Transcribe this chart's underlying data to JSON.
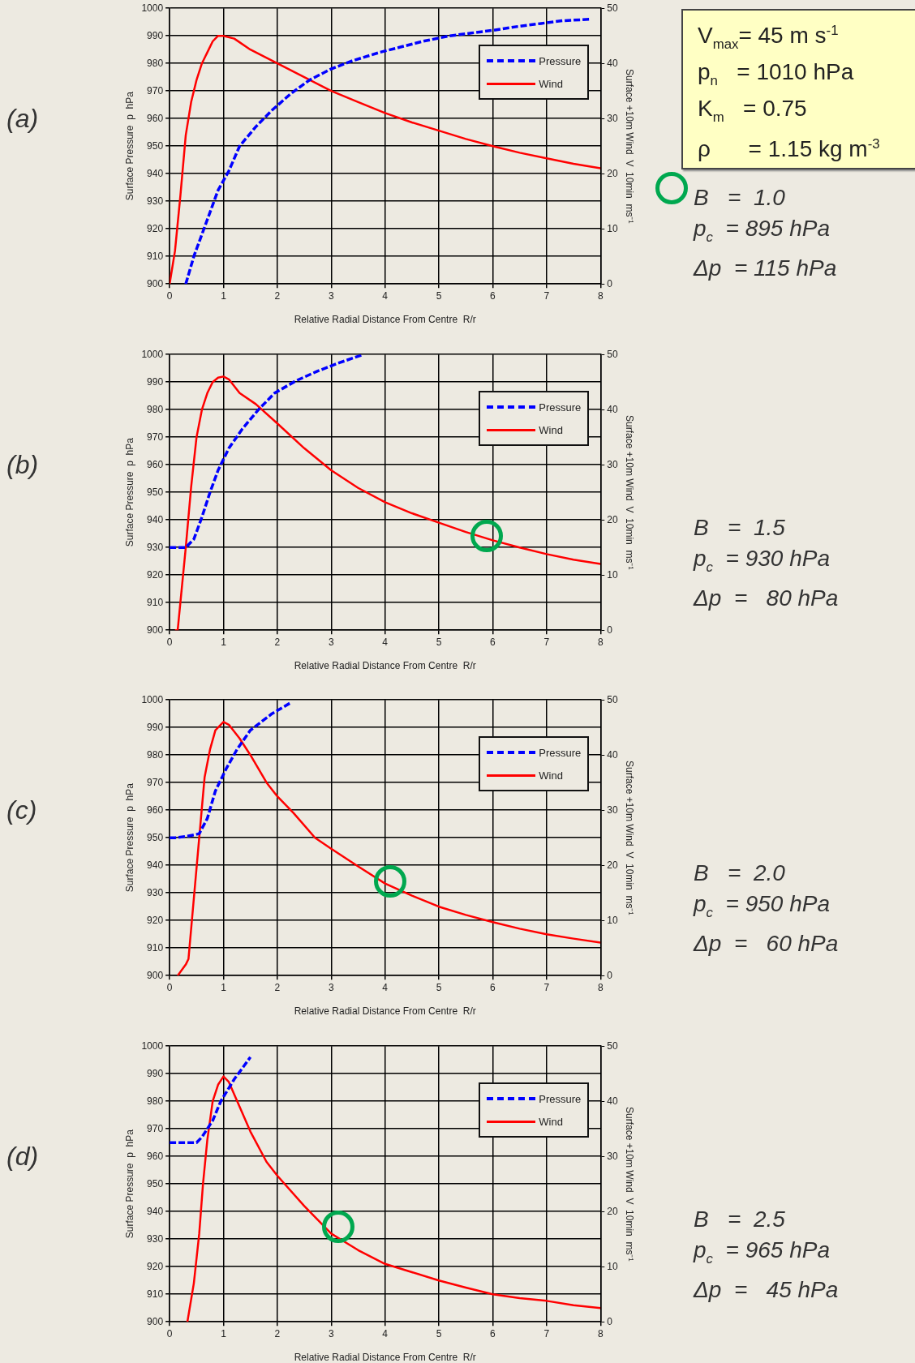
{
  "chart_data": [
    {
      "type": "line",
      "title": "(a)",
      "xlabel": "Relative Radial Distance From Centre  R/r",
      "ylabel": "Surface Pressure  p  hPa",
      "y2label": "Surface +10m Wind  V  10min  ms⁻¹",
      "xlim": [
        0,
        8
      ],
      "xticks": [
        0,
        1,
        2,
        3,
        4,
        5,
        6,
        7,
        8
      ],
      "ylim": [
        900,
        1000
      ],
      "yticks": [
        900,
        910,
        920,
        930,
        940,
        950,
        960,
        970,
        980,
        990,
        1000
      ],
      "y2lim": [
        0,
        50
      ],
      "y2ticks": [
        0,
        10,
        20,
        30,
        40,
        50
      ],
      "grid": true,
      "legend": "top right",
      "marker": "none",
      "series": [
        {
          "name": "Pressure",
          "color": "#0000ff",
          "line_style": "dashed",
          "x": [
            0.3,
            0.45,
            0.6,
            0.75,
            0.9,
            1.1,
            1.3,
            1.6,
            1.9,
            2.25,
            2.6,
            3,
            3.4,
            3.9,
            4.3,
            4.7,
            5.2,
            5.6,
            6,
            6.5,
            6.9,
            7.3,
            7.8
          ],
          "values": [
            900,
            910,
            918,
            926,
            934,
            941,
            950,
            957,
            963,
            969,
            974,
            978,
            981,
            984,
            986,
            988,
            990,
            991,
            992,
            993.5,
            994.5,
            995.5,
            996
          ]
        },
        {
          "name": "Wind",
          "color": "#ff0000",
          "line_style": "solid",
          "axis": "y2",
          "x": [
            0,
            0.1,
            0.2,
            0.3,
            0.4,
            0.5,
            0.6,
            0.7,
            0.8,
            0.9,
            1,
            1.2,
            1.5,
            2,
            2.5,
            3,
            3.5,
            4,
            4.5,
            5,
            5.5,
            6,
            6.5,
            7,
            7.5,
            8
          ],
          "values": [
            0,
            6,
            16,
            27,
            33,
            37,
            40,
            42,
            44,
            45,
            45,
            44.5,
            42.5,
            40,
            37.5,
            35,
            33,
            31,
            29.3,
            27.8,
            26.3,
            25,
            23.8,
            22.8,
            21.8,
            21
          ]
        }
      ],
      "annotations": [
        "B   =  1.0",
        "p$_{c}$  = 895 hPa",
        "Δp  = 115 hPa"
      ]
    },
    {
      "type": "other",
      "annotations": [
        "V$_{max}$= 45 m s$^{-1}$",
        "p$_{n}$   = 1010 hPa",
        "K$_{m}$   = 0.75",
        "ρ      = 1.15 kg m$^{-3}$"
      ]
    },
    {
      "type": "line",
      "title": "(b)",
      "xlabel": "Relative Radial Distance From Centre  R/r",
      "ylabel": "Surface Pressure  p  hPa",
      "y2label": "Surface +10m Wind  V  10min  ms⁻¹",
      "xlim": [
        0,
        8
      ],
      "xticks": [
        0,
        1,
        2,
        3,
        4,
        5,
        6,
        7,
        8
      ],
      "ylim": [
        900,
        1000
      ],
      "yticks": [
        900,
        910,
        920,
        930,
        940,
        950,
        960,
        970,
        980,
        990,
        1000
      ],
      "y2lim": [
        0,
        50
      ],
      "y2ticks": [
        0,
        10,
        20,
        30,
        40,
        50
      ],
      "grid": true,
      "legend": "top right",
      "marker": "none",
      "series": [
        {
          "name": "Pressure",
          "color": "#0000ff",
          "line_style": "dashed",
          "x": [
            0,
            0.15,
            0.3,
            0.45,
            0.6,
            0.75,
            0.9,
            1.1,
            1.35,
            1.65,
            1.95,
            2.35,
            2.75,
            3.15,
            3.6
          ],
          "values": [
            930,
            930,
            930,
            933,
            941,
            950,
            958,
            966,
            973,
            980,
            986,
            990.5,
            994,
            997,
            1000
          ]
        },
        {
          "name": "Wind",
          "color": "#ff0000",
          "line_style": "solid",
          "axis": "y2",
          "x": [
            0.1,
            0.15,
            0.2,
            0.3,
            0.4,
            0.5,
            0.6,
            0.7,
            0.8,
            0.9,
            1,
            1.1,
            1.3,
            1.6,
            2,
            2.5,
            3,
            3.5,
            4,
            4.5,
            5,
            5.5,
            6,
            6.5,
            7,
            7.5,
            8
          ],
          "values": [
            0,
            0,
            5,
            15,
            26,
            35,
            40,
            43,
            45,
            45.8,
            46,
            45.5,
            43,
            41,
            37.5,
            33,
            29,
            25.8,
            23.2,
            21.2,
            19.5,
            17.8,
            16.3,
            15,
            13.8,
            12.8,
            12
          ]
        }
      ],
      "annotations": [
        "B   =  1.5",
        "p$_{c}$  = 930 hPa",
        "Δp  =   80 hPa"
      ]
    },
    {
      "type": "line",
      "title": "(c)",
      "xlabel": "Relative Radial Distance From Centre  R/r",
      "ylabel": "Surface Pressure  p  hPa",
      "y2label": "Surface +10m Wind  V  10min  ms⁻¹",
      "xlim": [
        0,
        8
      ],
      "xticks": [
        0,
        1,
        2,
        3,
        4,
        5,
        6,
        7,
        8
      ],
      "ylim": [
        900,
        1000
      ],
      "yticks": [
        900,
        910,
        920,
        930,
        940,
        950,
        960,
        970,
        980,
        990,
        1000
      ],
      "y2lim": [
        0,
        50
      ],
      "y2ticks": [
        0,
        10,
        20,
        30,
        40,
        50
      ],
      "grid": true,
      "legend": "top right",
      "marker": "none",
      "series": [
        {
          "name": "Pressure",
          "color": "#0000ff",
          "line_style": "dashed",
          "x": [
            0,
            0.1,
            0.3,
            0.45,
            0.55,
            0.7,
            0.85,
            1.05,
            1.25,
            1.5,
            1.9,
            2.25
          ],
          "values": [
            950,
            950,
            950.5,
            951,
            951.5,
            957,
            967,
            975,
            982,
            989,
            995,
            999
          ]
        },
        {
          "name": "Wind",
          "color": "#ff0000",
          "line_style": "solid",
          "axis": "y2",
          "x": [
            0.15,
            0.3,
            0.35,
            0.45,
            0.55,
            0.65,
            0.75,
            0.85,
            1,
            1.1,
            1.3,
            1.5,
            1.8,
            2,
            2.3,
            2.7,
            3,
            3.5,
            4,
            4.5,
            5,
            5.5,
            6,
            6.5,
            7,
            7.5,
            8
          ],
          "values": [
            0,
            2,
            3,
            14,
            25,
            36,
            41,
            44.5,
            46,
            45.5,
            43,
            40,
            35,
            32.5,
            29.5,
            25,
            23,
            19.8,
            16.7,
            14.5,
            12.5,
            11,
            9.7,
            8.5,
            7.5,
            6.7,
            6
          ]
        }
      ],
      "annotations": [
        "B   =  2.0",
        "p$_{c}$  = 950 hPa",
        "Δp  =   60 hPa"
      ]
    },
    {
      "type": "line",
      "title": "(d)",
      "xlabel": "Relative Radial Distance From Centre  R/r",
      "ylabel": "Surface Pressure  p  hPa",
      "y2label": "Surface +10m Wind  V  10min  ms⁻¹",
      "xlim": [
        0,
        8
      ],
      "xticks": [
        0,
        1,
        2,
        3,
        4,
        5,
        6,
        7,
        8
      ],
      "ylim": [
        900,
        1000
      ],
      "yticks": [
        900,
        910,
        920,
        930,
        940,
        950,
        960,
        970,
        980,
        990,
        1000
      ],
      "y2lim": [
        0,
        50
      ],
      "y2ticks": [
        0,
        10,
        20,
        30,
        40,
        50
      ],
      "grid": true,
      "legend": "top right",
      "marker": "none",
      "series": [
        {
          "name": "Pressure",
          "color": "#0000ff",
          "line_style": "dashed",
          "x": [
            0,
            0.1,
            0.3,
            0.5,
            0.6,
            0.8,
            0.95,
            1.2,
            1.5
          ],
          "values": [
            965,
            965,
            965,
            965,
            967,
            973,
            980,
            988,
            996
          ]
        },
        {
          "name": "Wind",
          "color": "#ff0000",
          "line_style": "solid",
          "axis": "y2",
          "x": [
            0.33,
            0.45,
            0.55,
            0.62,
            0.7,
            0.8,
            0.9,
            1,
            1.1,
            1.3,
            1.5,
            1.8,
            2,
            2.5,
            3,
            3.5,
            4,
            4.5,
            5,
            5.5,
            6,
            6.5,
            7,
            7.5,
            8
          ],
          "values": [
            0,
            7,
            16,
            25,
            33,
            40,
            43,
            44.5,
            43.5,
            39,
            34.5,
            29,
            26.5,
            21,
            16,
            13,
            10.5,
            9,
            7.5,
            6.2,
            5,
            4.3,
            3.8,
            3,
            2.5
          ]
        }
      ],
      "annotations": [
        "B   =  2.5",
        "p$_{c}$  = 965 hPa",
        "Δp  =   45 hPa"
      ]
    }
  ]
}
